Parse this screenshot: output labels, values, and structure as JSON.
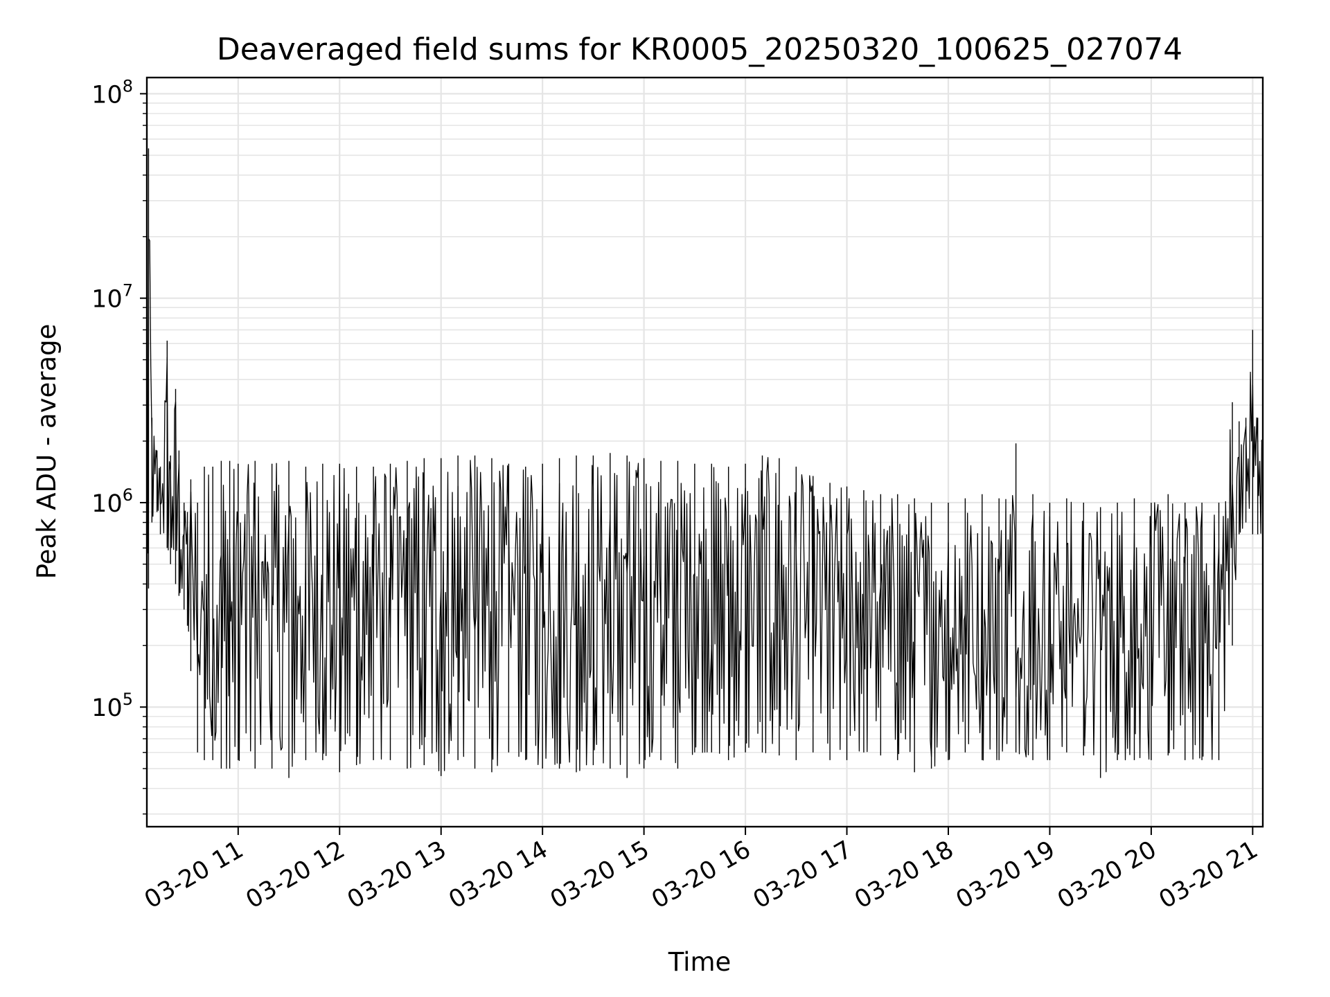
{
  "chart_data": {
    "type": "line",
    "title": "Deaveraged field sums for KR0005_20250320_100625_027074",
    "xlabel": "Time",
    "ylabel": "Peak ADU - average",
    "yscale": "log",
    "ylim": [
      26000,
      120000000
    ],
    "xlim": [
      "2025-03-20 10:06",
      "2025-03-20 21:06"
    ],
    "grid": true,
    "line_color": "#000000",
    "grid_color": "#e5e5e5",
    "x_ticks": [
      {
        "value": "2025-03-20 11:00",
        "label": "03-20 11"
      },
      {
        "value": "2025-03-20 12:00",
        "label": "03-20 12"
      },
      {
        "value": "2025-03-20 13:00",
        "label": "03-20 13"
      },
      {
        "value": "2025-03-20 14:00",
        "label": "03-20 14"
      },
      {
        "value": "2025-03-20 15:00",
        "label": "03-20 15"
      },
      {
        "value": "2025-03-20 16:00",
        "label": "03-20 16"
      },
      {
        "value": "2025-03-20 17:00",
        "label": "03-20 17"
      },
      {
        "value": "2025-03-20 18:00",
        "label": "03-20 18"
      },
      {
        "value": "2025-03-20 19:00",
        "label": "03-20 19"
      },
      {
        "value": "2025-03-20 20:00",
        "label": "03-20 20"
      },
      {
        "value": "2025-03-20 21:00",
        "label": "03-20 21"
      }
    ],
    "y_ticks": [
      {
        "value": 100000,
        "base": "10",
        "exp": "5"
      },
      {
        "value": 1000000,
        "base": "10",
        "exp": "6"
      },
      {
        "value": 10000000,
        "base": "10",
        "exp": "7"
      },
      {
        "value": 100000000,
        "base": "10",
        "exp": "8"
      }
    ],
    "series": [
      {
        "x": [
          "2025-03-20 10:06",
          "2025-03-20 10:07",
          "2025-03-20 10:09",
          "2025-03-20 10:12",
          "2025-03-20 10:14",
          "2025-03-20 10:18",
          "2025-03-20 10:20",
          "2025-03-20 10:23",
          "2025-03-20 10:25",
          "2025-03-20 10:28",
          "2025-03-20 10:30",
          "2025-03-20 10:32",
          "2025-03-20 10:36",
          "2025-03-20 10:40",
          "2025-03-20 10:45",
          "2025-03-20 10:50",
          "2025-03-20 10:55",
          "2025-03-20 11:00",
          "2025-03-20 11:10",
          "2025-03-20 11:20",
          "2025-03-20 11:30",
          "2025-03-20 11:40",
          "2025-03-20 11:50",
          "2025-03-20 12:00",
          "2025-03-20 12:10",
          "2025-03-20 12:20",
          "2025-03-20 12:30",
          "2025-03-20 12:40",
          "2025-03-20 12:50",
          "2025-03-20 13:00",
          "2025-03-20 13:10",
          "2025-03-20 13:20",
          "2025-03-20 13:30",
          "2025-03-20 13:40",
          "2025-03-20 13:50",
          "2025-03-20 14:00",
          "2025-03-20 14:10",
          "2025-03-20 14:20",
          "2025-03-20 14:30",
          "2025-03-20 14:40",
          "2025-03-20 14:50",
          "2025-03-20 15:00",
          "2025-03-20 15:10",
          "2025-03-20 15:20",
          "2025-03-20 15:30",
          "2025-03-20 15:40",
          "2025-03-20 15:50",
          "2025-03-20 16:00",
          "2025-03-20 16:10",
          "2025-03-20 16:20",
          "2025-03-20 16:30",
          "2025-03-20 16:40",
          "2025-03-20 16:50",
          "2025-03-20 17:00",
          "2025-03-20 17:10",
          "2025-03-20 17:20",
          "2025-03-20 17:30",
          "2025-03-20 17:40",
          "2025-03-20 17:50",
          "2025-03-20 18:00",
          "2025-03-20 18:10",
          "2025-03-20 18:20",
          "2025-03-20 18:30",
          "2025-03-20 18:40",
          "2025-03-20 18:50",
          "2025-03-20 19:00",
          "2025-03-20 19:10",
          "2025-03-20 19:20",
          "2025-03-20 19:30",
          "2025-03-20 19:40",
          "2025-03-20 19:50",
          "2025-03-20 20:00",
          "2025-03-20 20:10",
          "2025-03-20 20:20",
          "2025-03-20 20:30",
          "2025-03-20 20:40",
          "2025-03-20 20:48",
          "2025-03-20 20:52",
          "2025-03-20 20:56",
          "2025-03-20 21:00",
          "2025-03-20 21:03",
          "2025-03-20 21:06"
        ],
        "low": [
          400000,
          380000,
          800000,
          900000,
          700000,
          600000,
          500000,
          400000,
          350000,
          300000,
          250000,
          150000,
          60000,
          55000,
          55000,
          50000,
          50000,
          55000,
          50000,
          50000,
          45000,
          55000,
          55000,
          48000,
          52000,
          55000,
          55000,
          50000,
          52000,
          46000,
          55000,
          50000,
          48000,
          60000,
          55000,
          50000,
          50000,
          48000,
          52000,
          50000,
          45000,
          50000,
          55000,
          50000,
          60000,
          60000,
          55000,
          60000,
          60000,
          58000,
          55000,
          60000,
          55000,
          55000,
          60000,
          58000,
          55000,
          48000,
          50000,
          55000,
          60000,
          55000,
          55000,
          60000,
          55000,
          55000,
          60000,
          58000,
          45000,
          55000,
          55000,
          55000,
          58000,
          55000,
          55000,
          55000,
          200000,
          700000,
          800000,
          700000,
          700000,
          700000
        ],
        "high": [
          1600000,
          54000000,
          2600000,
          1800000,
          1500000,
          6200000,
          1700000,
          3600000,
          1800000,
          1000000,
          900000,
          1300000,
          1000000,
          1500000,
          1500000,
          1600000,
          1600000,
          1550000,
          1600000,
          1550000,
          1600000,
          1500000,
          1550000,
          1550000,
          1500000,
          1500000,
          1550000,
          1600000,
          1650000,
          1650000,
          1700000,
          1700000,
          1650000,
          1550000,
          1500000,
          1550000,
          1650000,
          1700000,
          1700000,
          1750000,
          1700000,
          1650000,
          1600000,
          1600000,
          1550000,
          1550000,
          1500000,
          1550000,
          1700000,
          1650000,
          1500000,
          1350000,
          1250000,
          1200000,
          1150000,
          1100000,
          1100000,
          1050000,
          1000000,
          1000000,
          1050000,
          1100000,
          1050000,
          1950000,
          1100000,
          1000000,
          1050000,
          1000000,
          950000,
          1000000,
          1050000,
          1000000,
          1100000,
          1000000,
          1000000,
          1000000,
          3100000,
          2500000,
          2600000,
          7000000,
          2600000,
          2000000
        ]
      }
    ]
  }
}
